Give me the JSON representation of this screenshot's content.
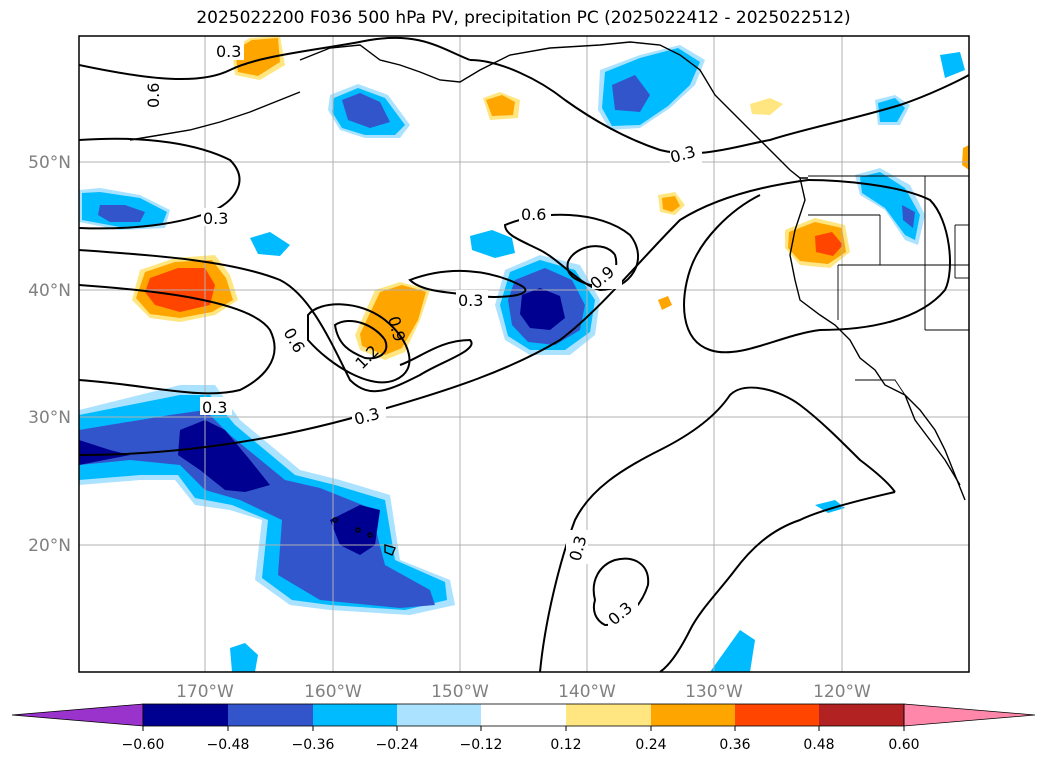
{
  "title": "2025022200 F036 500 hPa PV, precipitation PC (2025022412 - 2025022512)",
  "map": {
    "lon_labels": [
      "170°W",
      "160°W",
      "150°W",
      "140°W",
      "130°W",
      "120°W"
    ],
    "lat_labels": [
      "50°N",
      "40°N",
      "30°N",
      "20°N"
    ],
    "contour_labels": [
      "0.3",
      "0.6",
      "0.3",
      "0.6",
      "0.3",
      "0.6",
      "0.3",
      "0.9",
      "0.9",
      "1.2",
      "0.3",
      "0.3",
      "0.3",
      "0.3"
    ]
  },
  "colorbar": {
    "ticks": [
      "−0.60",
      "−0.48",
      "−0.36",
      "−0.24",
      "−0.12",
      "0.12",
      "0.24",
      "0.36",
      "0.48",
      "0.60"
    ],
    "colors": [
      "#9933cc",
      "#000090",
      "#3355cc",
      "#00bbff",
      "#aae2ff",
      "#ffffff",
      "#ffe680",
      "#ffa500",
      "#ff4500",
      "#b22222",
      "#ff88aa"
    ]
  },
  "legend_colors": {
    "deep_blue": "#000090",
    "mid_blue": "#3355cc",
    "cyan": "#00bbff",
    "light_blue": "#aae2ff",
    "yellow": "#ffe680",
    "orange": "#ffa500",
    "red_orange": "#ff4500"
  }
}
